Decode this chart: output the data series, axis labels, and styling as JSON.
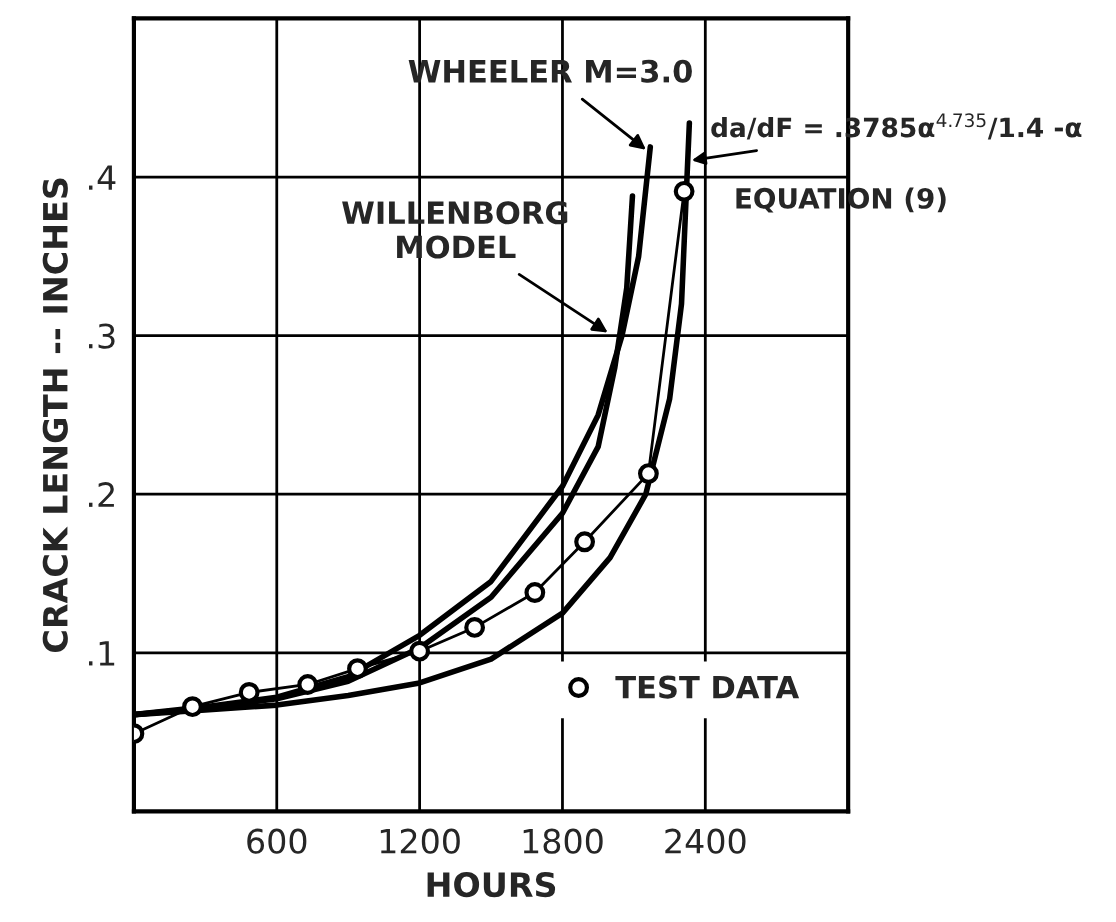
{
  "chart_data": {
    "type": "line",
    "xlabel": "HOURS",
    "ylabel": "CRACK LENGTH -- INCHES",
    "xlim": [
      0,
      3000
    ],
    "ylim": [
      0,
      0.5
    ],
    "xticks": [
      600,
      1200,
      1800,
      2400
    ],
    "yticks": [
      {
        "value": 0.1,
        "label": ".1"
      },
      {
        "value": 0.2,
        "label": ".2"
      },
      {
        "value": 0.3,
        "label": ".3"
      },
      {
        "value": 0.4,
        "label": ".4"
      }
    ],
    "grid": true,
    "legend": "bottom right",
    "series": [
      {
        "color": "#000000",
        "marker": "none",
        "x": [
          0,
          300,
          600,
          900,
          1200,
          1500,
          1800,
          1950,
          2050,
          2120,
          2169
        ],
        "values": [
          0.061,
          0.066,
          0.072,
          0.085,
          0.111,
          0.145,
          0.205,
          0.25,
          0.3,
          0.35,
          0.419
        ]
      },
      {
        "color": "#000000",
        "marker": "none",
        "x": [
          0,
          300,
          600,
          900,
          1200,
          1500,
          1800,
          1950,
          2020,
          2070,
          2094
        ],
        "values": [
          0.061,
          0.065,
          0.071,
          0.082,
          0.103,
          0.135,
          0.188,
          0.23,
          0.28,
          0.33,
          0.388
        ]
      },
      {
        "color": "#000000",
        "marker": "none",
        "x": [
          0,
          300,
          600,
          900,
          1200,
          1500,
          1800,
          2000,
          2150,
          2250,
          2300,
          2333
        ],
        "values": [
          0.061,
          0.064,
          0.067,
          0.073,
          0.081,
          0.096,
          0.125,
          0.16,
          0.2,
          0.26,
          0.32,
          0.434
        ]
      },
      {
        "name": "TEST DATA",
        "color": "#000000",
        "marker": "circle",
        "x": [
          0,
          246,
          484,
          730,
          939,
          1200,
          1431,
          1684,
          1893,
          2161,
          2311
        ],
        "values": [
          0.049,
          0.066,
          0.075,
          0.08,
          0.09,
          0.101,
          0.116,
          0.138,
          0.17,
          0.213,
          0.391
        ]
      }
    ],
    "annotations": [
      {
        "text": "WHEELER M=3.0",
        "x": 2169,
        "y": 0.415
      },
      {
        "text": "WILLENBORG\nMODEL",
        "x": 2010,
        "y": 0.3
      },
      {
        "text": "da/dF = .3785α$^{4.735}$/1.4 -α",
        "x": 2320,
        "y": 0.41
      },
      "EQUATION (9)"
    ]
  }
}
